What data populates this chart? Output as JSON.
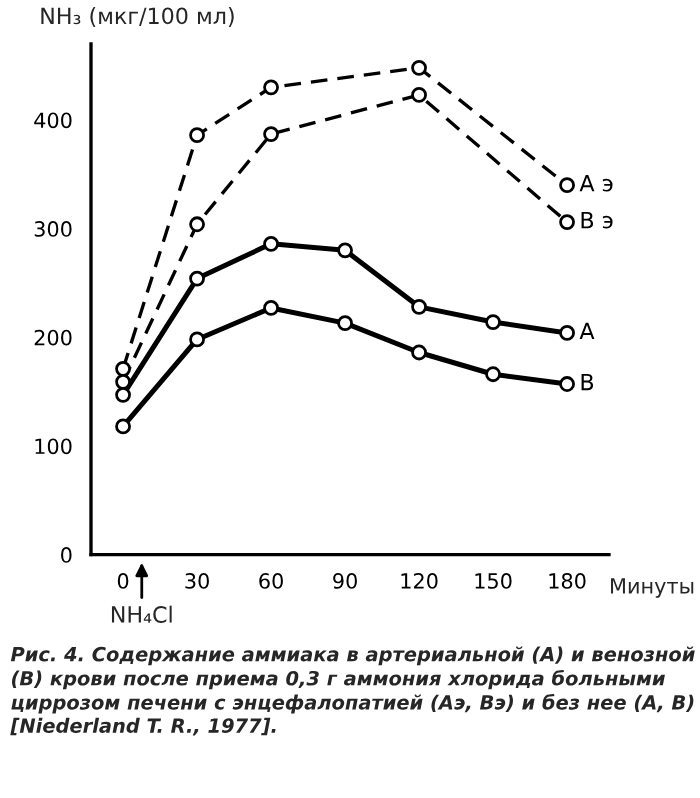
{
  "chart_data": {
    "type": "line",
    "ylabel": "NH₃ (мкг/100 мл)",
    "xlabel": "Минуты",
    "xlim": [
      -13,
      197
    ],
    "xticks": [
      0,
      30,
      60,
      90,
      120,
      150,
      180
    ],
    "ylim": [
      0,
      470
    ],
    "yticks": [
      0,
      100,
      200,
      300,
      400
    ],
    "marker": "circle",
    "grid": false,
    "legend": false,
    "series": [
      {
        "name": "A э",
        "color": "#000000",
        "line_style": "dashed",
        "x": [
          0,
          30,
          60,
          120,
          180
        ],
        "values": [
          171,
          386,
          430,
          448,
          340
        ]
      },
      {
        "name": "B э",
        "color": "#000000",
        "line_style": "dashed",
        "x": [
          0,
          30,
          60,
          120,
          180
        ],
        "values": [
          159,
          304,
          387,
          423,
          306
        ]
      },
      {
        "name": "A",
        "color": "#000000",
        "line_style": "solid",
        "x": [
          0,
          30,
          60,
          90,
          120,
          150,
          180
        ],
        "values": [
          147,
          254,
          286,
          280,
          228,
          214,
          204
        ]
      },
      {
        "name": "B",
        "color": "#000000",
        "line_style": "solid",
        "x": [
          0,
          30,
          60,
          90,
          120,
          150,
          180
        ],
        "values": [
          118,
          198,
          227,
          213,
          186,
          166,
          157
        ]
      }
    ],
    "annotations": [
      "NH₄Cl",
      "Рис. 4. Содержание аммиака в артериальной (А) и венозной (В) крови после приема 0,3 г аммония хлорида больными циррозом печени с энцефалопатией (Аэ, Вэ) и без нее (А, В) [Niederland T. R., 1977]."
    ]
  }
}
